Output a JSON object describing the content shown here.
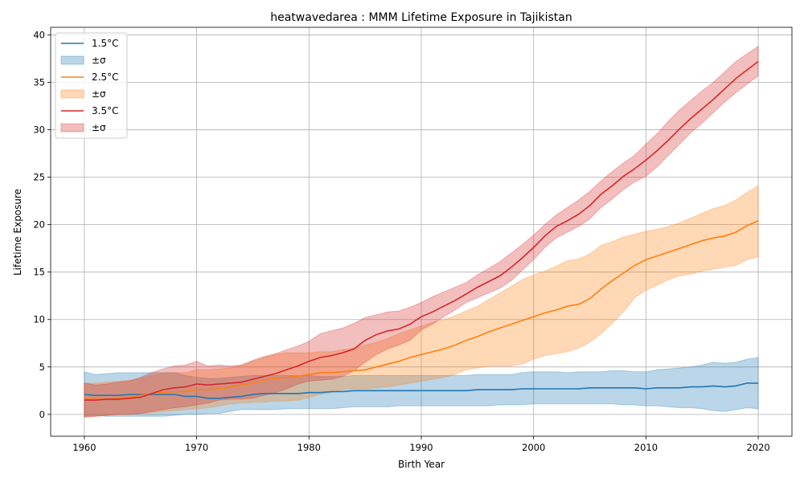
{
  "chart_data": {
    "type": "line",
    "title": "heatwavedarea : MMM Lifetime Exposure in Tajikistan",
    "xlabel": "Birth Year",
    "ylabel": "Lifetime Exposure",
    "xlim": [
      1957,
      2023
    ],
    "ylim": [
      -2.3,
      40.8
    ],
    "xticks": [
      1960,
      1970,
      1980,
      1990,
      2000,
      2010,
      2020
    ],
    "yticks": [
      0,
      5,
      10,
      15,
      20,
      25,
      30,
      35,
      40
    ],
    "grid": true,
    "legend_position": "upper-left",
    "x": [
      1960,
      1961,
      1962,
      1963,
      1964,
      1965,
      1966,
      1967,
      1968,
      1969,
      1970,
      1971,
      1972,
      1973,
      1974,
      1975,
      1976,
      1977,
      1978,
      1979,
      1980,
      1981,
      1982,
      1983,
      1984,
      1985,
      1986,
      1987,
      1988,
      1989,
      1990,
      1991,
      1992,
      1993,
      1994,
      1995,
      1996,
      1997,
      1998,
      1999,
      2000,
      2001,
      2002,
      2003,
      2004,
      2005,
      2006,
      2007,
      2008,
      2009,
      2010,
      2011,
      2012,
      2013,
      2014,
      2015,
      2016,
      2017,
      2018,
      2019,
      2020
    ],
    "series": [
      {
        "name": "1.5°C",
        "band_label": "±σ",
        "color": "#1f77b4",
        "values": [
          2.1,
          2.0,
          2.0,
          2.0,
          2.1,
          2.1,
          2.1,
          2.1,
          2.1,
          1.9,
          1.9,
          1.7,
          1.7,
          1.8,
          1.9,
          2.1,
          2.2,
          2.2,
          2.2,
          2.2,
          2.3,
          2.3,
          2.4,
          2.4,
          2.5,
          2.5,
          2.5,
          2.5,
          2.5,
          2.5,
          2.5,
          2.5,
          2.5,
          2.5,
          2.5,
          2.6,
          2.6,
          2.6,
          2.6,
          2.7,
          2.7,
          2.7,
          2.7,
          2.7,
          2.7,
          2.8,
          2.8,
          2.8,
          2.8,
          2.8,
          2.7,
          2.8,
          2.8,
          2.8,
          2.9,
          2.9,
          3.0,
          2.9,
          3.0,
          3.3,
          3.3
        ],
        "upper": [
          4.5,
          4.2,
          4.3,
          4.4,
          4.4,
          4.4,
          4.4,
          4.4,
          4.4,
          4.1,
          3.9,
          3.8,
          3.8,
          3.9,
          4.0,
          4.1,
          4.1,
          4.1,
          4.1,
          4.1,
          4.1,
          4.0,
          4.0,
          4.0,
          4.1,
          4.1,
          4.1,
          4.1,
          4.1,
          4.1,
          4.1,
          4.1,
          4.1,
          4.1,
          4.1,
          4.2,
          4.2,
          4.2,
          4.2,
          4.4,
          4.5,
          4.5,
          4.5,
          4.4,
          4.5,
          4.5,
          4.5,
          4.6,
          4.6,
          4.5,
          4.5,
          4.7,
          4.8,
          4.9,
          5.0,
          5.2,
          5.5,
          5.4,
          5.5,
          5.8,
          6.0
        ],
        "lower": [
          -0.2,
          -0.1,
          -0.2,
          -0.2,
          -0.2,
          -0.2,
          -0.2,
          -0.2,
          -0.1,
          0.0,
          0.0,
          0.1,
          0.1,
          0.3,
          0.5,
          0.5,
          0.5,
          0.5,
          0.6,
          0.6,
          0.6,
          0.6,
          0.6,
          0.7,
          0.8,
          0.8,
          0.8,
          0.8,
          0.9,
          0.9,
          0.9,
          0.9,
          0.9,
          0.9,
          0.9,
          0.9,
          0.9,
          1.0,
          1.0,
          1.0,
          1.1,
          1.1,
          1.1,
          1.1,
          1.1,
          1.1,
          1.1,
          1.1,
          1.0,
          1.0,
          0.9,
          0.9,
          0.8,
          0.7,
          0.7,
          0.6,
          0.4,
          0.3,
          0.5,
          0.7,
          0.6
        ]
      },
      {
        "name": "2.5°C",
        "band_label": "±σ",
        "color": "#ff7f0e",
        "values": [
          1.6,
          1.6,
          1.6,
          1.7,
          1.8,
          2.0,
          2.2,
          2.3,
          2.4,
          2.4,
          2.6,
          2.6,
          2.7,
          2.9,
          3.1,
          3.3,
          3.6,
          3.8,
          3.9,
          4.0,
          4.2,
          4.4,
          4.4,
          4.5,
          4.6,
          4.7,
          5.0,
          5.3,
          5.6,
          6.0,
          6.3,
          6.6,
          6.9,
          7.3,
          7.8,
          8.2,
          8.7,
          9.1,
          9.5,
          9.9,
          10.3,
          10.7,
          11.0,
          11.4,
          11.6,
          12.2,
          13.2,
          14.1,
          14.9,
          15.7,
          16.3,
          16.7,
          17.1,
          17.5,
          17.9,
          18.3,
          18.6,
          18.8,
          19.2,
          19.9,
          20.4
        ],
        "upper": [
          3.3,
          3.3,
          3.4,
          3.5,
          3.6,
          3.8,
          4.1,
          4.3,
          4.4,
          4.4,
          4.7,
          4.7,
          4.8,
          4.9,
          5.2,
          5.6,
          6.0,
          6.3,
          6.5,
          6.5,
          6.5,
          6.6,
          6.6,
          6.8,
          7.0,
          7.3,
          7.6,
          8.0,
          8.5,
          8.9,
          9.3,
          9.7,
          10.0,
          10.4,
          10.9,
          11.4,
          12.1,
          12.8,
          13.5,
          14.2,
          14.7,
          15.1,
          15.6,
          16.2,
          16.4,
          16.9,
          17.8,
          18.2,
          18.7,
          19.0,
          19.3,
          19.5,
          19.8,
          20.2,
          20.7,
          21.2,
          21.7,
          22.0,
          22.6,
          23.4,
          24.1
        ],
        "lower": [
          -0.2,
          -0.2,
          -0.1,
          0.0,
          0.0,
          0.1,
          0.2,
          0.3,
          0.4,
          0.5,
          0.6,
          0.7,
          0.9,
          1.1,
          1.2,
          1.3,
          1.3,
          1.4,
          1.4,
          1.5,
          1.8,
          2.1,
          2.3,
          2.6,
          2.7,
          2.7,
          2.8,
          2.9,
          3.1,
          3.3,
          3.5,
          3.7,
          3.9,
          4.2,
          4.7,
          4.9,
          5.1,
          5.1,
          5.1,
          5.3,
          5.8,
          6.2,
          6.4,
          6.6,
          7.0,
          7.6,
          8.5,
          9.6,
          10.8,
          12.3,
          13.1,
          13.6,
          14.2,
          14.6,
          14.8,
          15.1,
          15.3,
          15.5,
          15.7,
          16.3,
          16.6
        ]
      },
      {
        "name": "3.5°C",
        "band_label": "±σ",
        "color": "#d62728",
        "values": [
          1.5,
          1.5,
          1.6,
          1.6,
          1.7,
          1.8,
          2.2,
          2.6,
          2.8,
          2.9,
          3.2,
          3.1,
          3.2,
          3.3,
          3.4,
          3.7,
          4.0,
          4.3,
          4.7,
          5.1,
          5.6,
          6.0,
          6.2,
          6.5,
          6.9,
          7.8,
          8.4,
          8.8,
          9.0,
          9.5,
          10.3,
          10.8,
          11.4,
          12.0,
          12.7,
          13.4,
          14.0,
          14.6,
          15.5,
          16.5,
          17.6,
          18.8,
          19.8,
          20.4,
          21.1,
          22.0,
          23.2,
          24.1,
          25.1,
          25.9,
          26.8,
          27.8,
          28.9,
          30.1,
          31.2,
          32.2,
          33.2,
          34.3,
          35.4,
          36.3,
          37.2
        ],
        "upper": [
          3.3,
          3.1,
          3.2,
          3.4,
          3.5,
          3.9,
          4.4,
          4.8,
          5.1,
          5.2,
          5.6,
          5.1,
          5.2,
          5.1,
          5.2,
          5.7,
          6.1,
          6.4,
          6.8,
          7.2,
          7.7,
          8.5,
          8.8,
          9.1,
          9.6,
          10.2,
          10.5,
          10.8,
          10.9,
          11.3,
          11.8,
          12.4,
          12.9,
          13.4,
          13.9,
          14.7,
          15.4,
          16.1,
          17.0,
          17.9,
          18.9,
          20.0,
          21.0,
          21.8,
          22.6,
          23.5,
          24.6,
          25.6,
          26.5,
          27.3,
          28.5,
          29.6,
          30.9,
          32.1,
          33.1,
          34.1,
          35.0,
          36.1,
          37.2,
          38.0,
          38.8
        ],
        "lower": [
          -0.3,
          -0.2,
          -0.1,
          0.0,
          0.0,
          0.1,
          0.3,
          0.5,
          0.7,
          0.8,
          1.0,
          1.2,
          1.5,
          1.6,
          1.6,
          1.7,
          2.0,
          2.3,
          2.7,
          3.2,
          3.5,
          3.6,
          3.7,
          4.0,
          4.6,
          5.5,
          6.3,
          6.9,
          7.3,
          7.8,
          8.9,
          9.5,
          10.3,
          11.0,
          11.8,
          12.3,
          12.8,
          13.3,
          14.1,
          15.2,
          16.3,
          17.6,
          18.6,
          19.2,
          19.8,
          20.6,
          21.8,
          22.7,
          23.7,
          24.5,
          25.1,
          26.1,
          27.3,
          28.5,
          29.7,
          30.7,
          31.8,
          32.9,
          33.9,
          34.8,
          35.7
        ]
      }
    ]
  }
}
